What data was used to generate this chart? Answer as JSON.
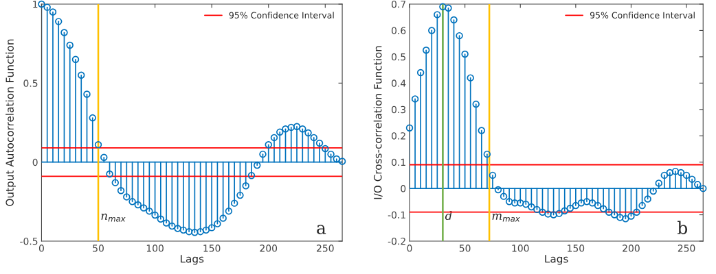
{
  "chart_data": [
    {
      "type": "lollipop",
      "xlabel": "Lags",
      "ylabel": "Output Autocorrelation Function",
      "xlim": [
        0,
        265
      ],
      "xticks": [
        0,
        50,
        100,
        150,
        200,
        250
      ],
      "ylim": [
        -0.5,
        1
      ],
      "yticks": [
        -0.5,
        0,
        0.5,
        1
      ],
      "marker": "circle",
      "legend": "top right",
      "grid": false,
      "series": [
        {
          "color": "#0072bd",
          "x": [
            0,
            5,
            10,
            15,
            20,
            25,
            30,
            35,
            40,
            45,
            50,
            55,
            60,
            65,
            70,
            75,
            80,
            85,
            90,
            95,
            100,
            105,
            110,
            115,
            120,
            125,
            130,
            135,
            140,
            145,
            150,
            155,
            160,
            165,
            170,
            175,
            180,
            185,
            190,
            195,
            200,
            205,
            210,
            215,
            220,
            225,
            230,
            235,
            240,
            245,
            250,
            255,
            260,
            265
          ],
          "values": [
            1,
            0.98,
            0.95,
            0.89,
            0.82,
            0.74,
            0.65,
            0.55,
            0.43,
            0.28,
            0.11,
            0.03,
            -0.075,
            -0.13,
            -0.18,
            -0.22,
            -0.25,
            -0.27,
            -0.29,
            -0.31,
            -0.335,
            -0.36,
            -0.385,
            -0.405,
            -0.42,
            -0.43,
            -0.44,
            -0.445,
            -0.44,
            -0.43,
            -0.415,
            -0.39,
            -0.355,
            -0.31,
            -0.26,
            -0.21,
            -0.15,
            -0.085,
            -0.02,
            0.05,
            0.11,
            0.155,
            0.19,
            0.21,
            0.22,
            0.225,
            0.21,
            0.185,
            0.155,
            0.12,
            0.085,
            0.05,
            0.02,
            0.005
          ]
        }
      ],
      "ref_lines": [
        {
          "axis": "y",
          "value": 0,
          "color": "#0072bd"
        },
        {
          "axis": "y",
          "value": 0.09,
          "label": "95% Confidence Interval",
          "color": "#ff0000"
        },
        {
          "axis": "y",
          "value": -0.09,
          "color": "#ff0000"
        },
        {
          "axis": "x",
          "value": 50,
          "label": "n$_{max}$",
          "color": "#ffc000"
        }
      ],
      "annotations": [
        "a"
      ]
    },
    {
      "type": "lollipop",
      "xlabel": "Lags",
      "ylabel": "I/O Cross-correlation Function",
      "xlim": [
        0,
        265
      ],
      "xticks": [
        0,
        50,
        100,
        150,
        200,
        250
      ],
      "ylim": [
        -0.2,
        0.7
      ],
      "yticks": [
        -0.2,
        -0.1,
        0,
        0.1,
        0.2,
        0.3,
        0.4,
        0.5,
        0.6,
        0.7
      ],
      "marker": "circle",
      "legend": "top right",
      "grid": false,
      "series": [
        {
          "color": "#0072bd",
          "x": [
            0,
            5,
            10,
            15,
            20,
            25,
            30,
            35,
            40,
            45,
            50,
            55,
            60,
            65,
            70,
            75,
            80,
            85,
            90,
            95,
            100,
            105,
            110,
            115,
            120,
            125,
            130,
            135,
            140,
            145,
            150,
            155,
            160,
            165,
            170,
            175,
            180,
            185,
            190,
            195,
            200,
            205,
            210,
            215,
            220,
            225,
            230,
            235,
            240,
            245,
            250,
            255,
            260,
            265
          ],
          "values": [
            0.23,
            0.34,
            0.44,
            0.525,
            0.6,
            0.66,
            0.69,
            0.685,
            0.64,
            0.58,
            0.51,
            0.42,
            0.32,
            0.22,
            0.13,
            0.05,
            -0.005,
            -0.03,
            -0.05,
            -0.055,
            -0.055,
            -0.06,
            -0.07,
            -0.08,
            -0.09,
            -0.097,
            -0.1,
            -0.095,
            -0.085,
            -0.075,
            -0.065,
            -0.055,
            -0.05,
            -0.055,
            -0.065,
            -0.077,
            -0.09,
            -0.1,
            -0.11,
            -0.115,
            -0.105,
            -0.09,
            -0.065,
            -0.04,
            -0.01,
            0.02,
            0.05,
            0.06,
            0.065,
            0.06,
            0.05,
            0.035,
            0.015,
            0
          ]
        }
      ],
      "ref_lines": [
        {
          "axis": "y",
          "value": 0,
          "color": "#0072bd"
        },
        {
          "axis": "y",
          "value": 0.09,
          "label": "95% Confidence Interval",
          "color": "#ff0000"
        },
        {
          "axis": "y",
          "value": -0.09,
          "color": "#ff0000"
        },
        {
          "axis": "x",
          "value": 30,
          "label": "d",
          "color": "#70ad47"
        },
        {
          "axis": "x",
          "value": 72,
          "label": "m$_{max}$",
          "color": "#ffc000"
        }
      ],
      "annotations": [
        "b"
      ]
    }
  ]
}
